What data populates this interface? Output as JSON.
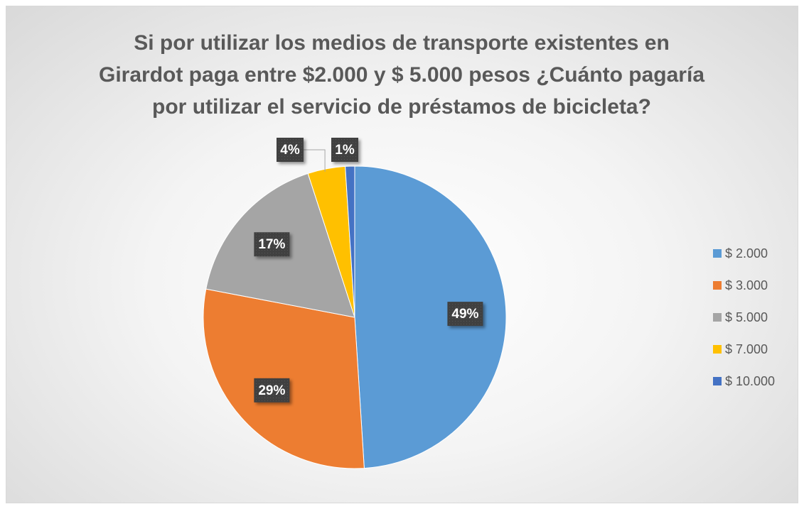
{
  "chart_data": {
    "type": "pie",
    "title": "Si por utilizar los medios de transporte existentes en Girardot paga entre $2.000 y $ 5.000 pesos ¿Cuánto pagaría por utilizar el servicio de préstamos de bicicleta?",
    "categories": [
      "$ 2.000",
      "$ 3.000",
      "$ 5.000",
      "$ 7.000",
      "$ 10.000"
    ],
    "values": [
      49,
      29,
      17,
      4,
      1
    ],
    "value_labels": [
      "49%",
      "29%",
      "17%",
      "4%",
      "1%"
    ],
    "colors": [
      "#5b9bd5",
      "#ed7d31",
      "#a5a5a5",
      "#ffc000",
      "#4472c4"
    ],
    "legend": "right"
  }
}
